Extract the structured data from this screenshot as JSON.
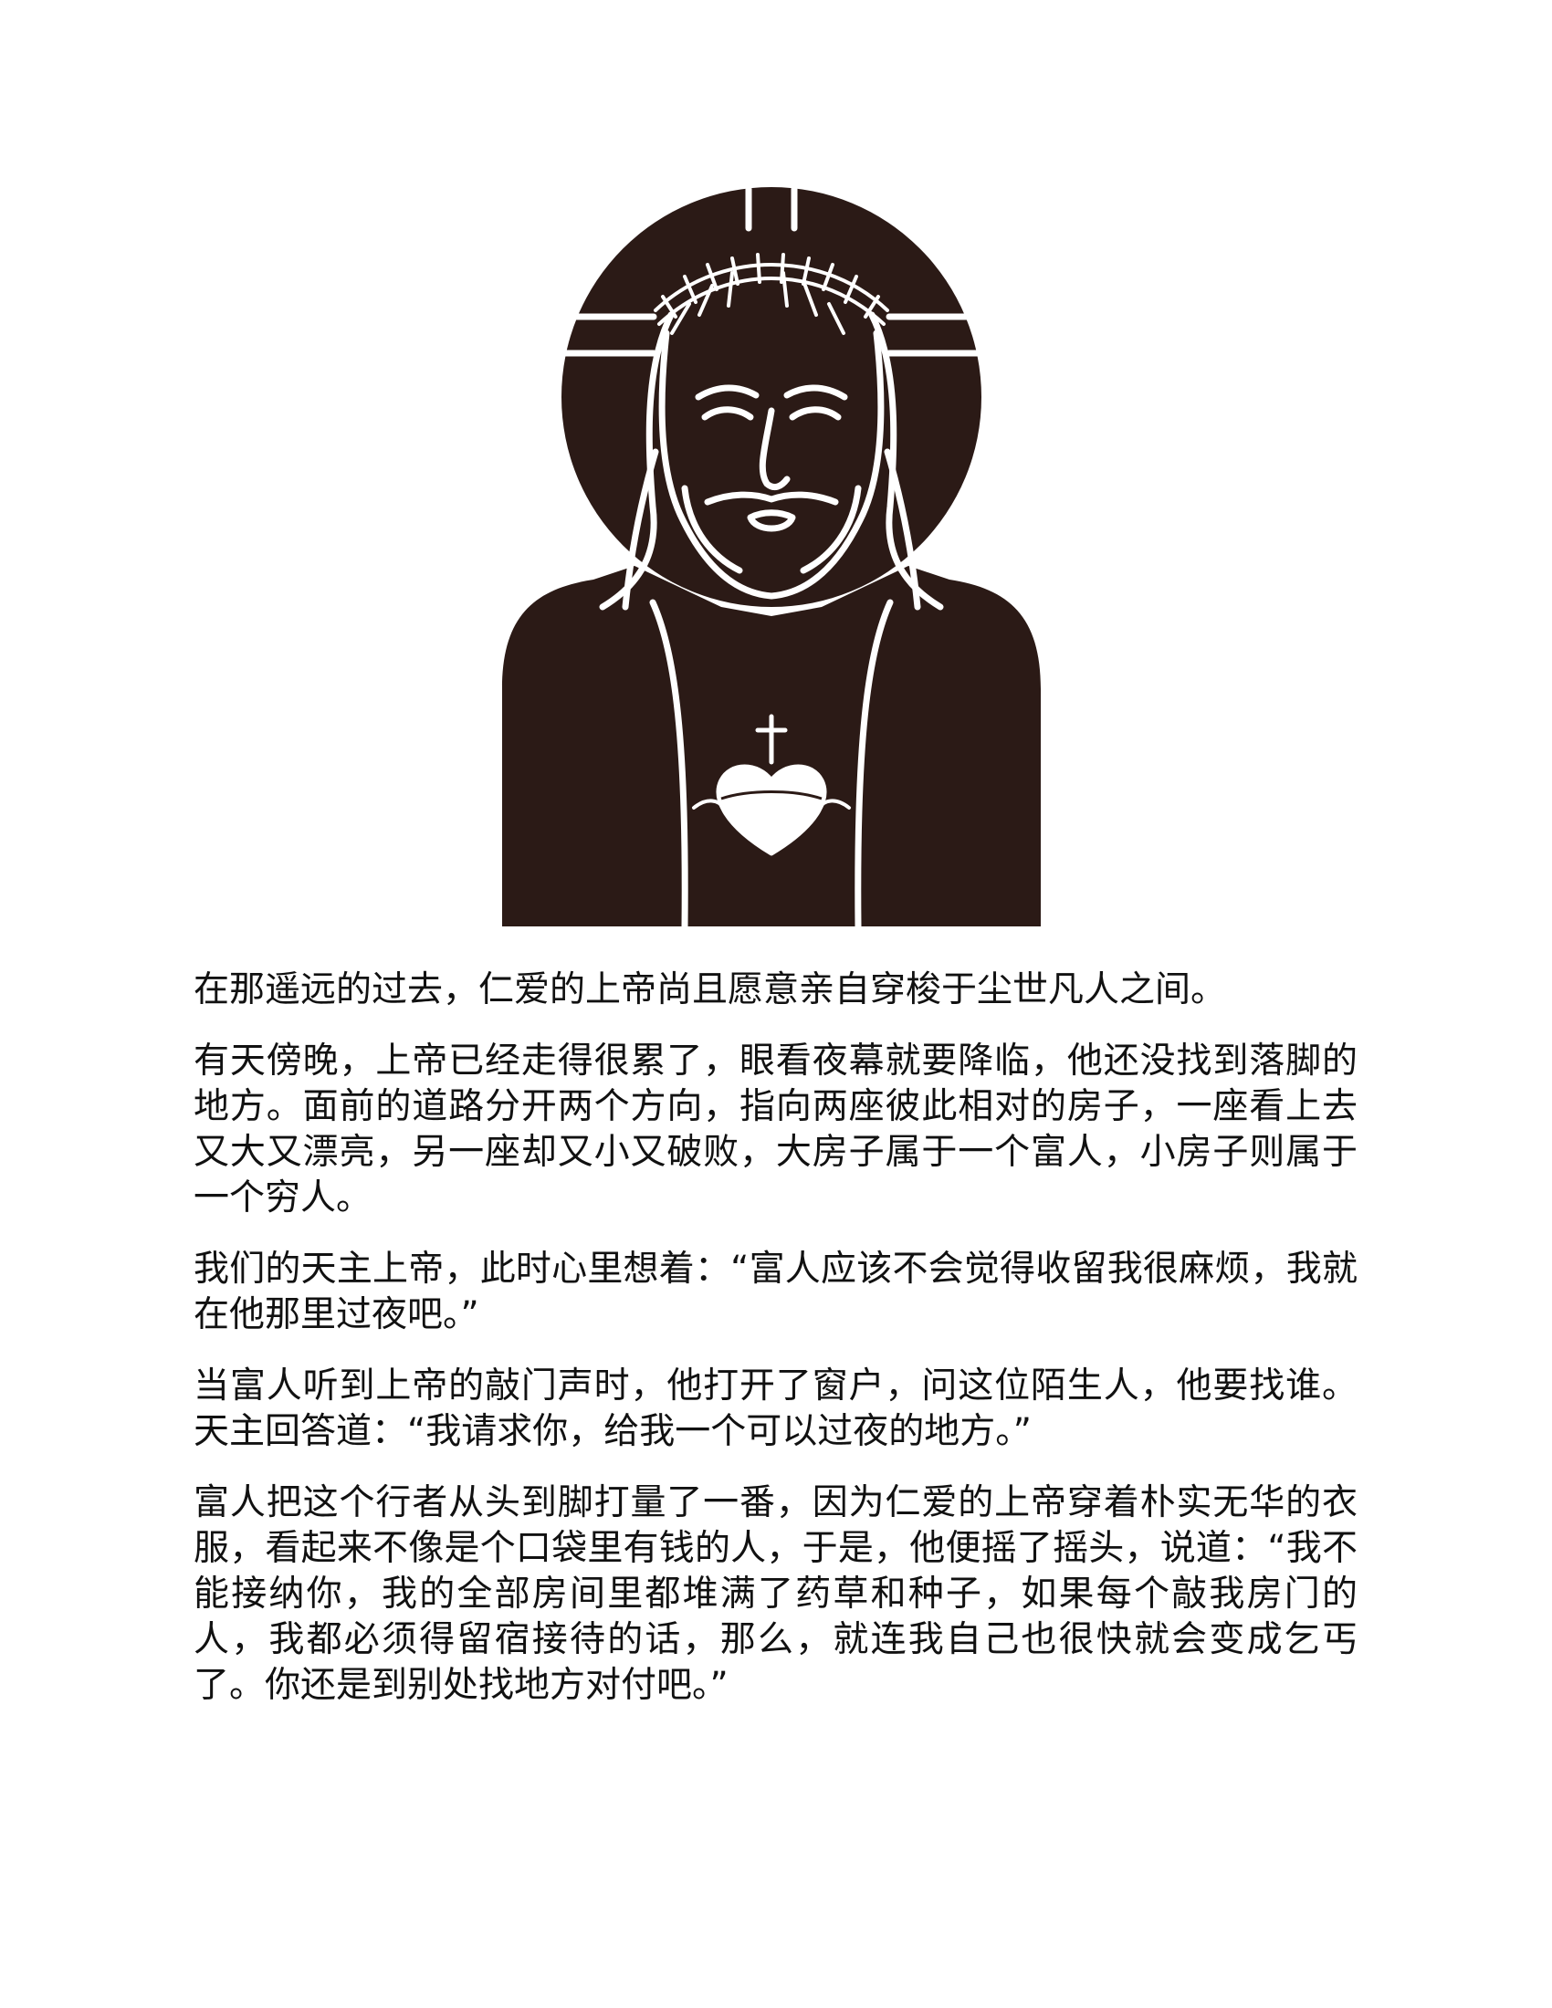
{
  "illustration": {
    "subject": "jesus-sacred-heart-icon",
    "ink_color": "#2b1a16",
    "paper_color": "#ffffff"
  },
  "story": {
    "paragraphs": [
      "在那遥远的过去，仁爱的上帝尚且愿意亲自穿梭于尘世凡人之间。",
      "有天傍晚，上帝已经走得很累了，眼看夜幕就要降临，他还没找到落脚的地方。面前的道路分开两个方向，指向两座彼此相对的房子，一座看上去又大又漂亮，另一座却又小又破败，大房子属于一个富人，小房子则属于一个穷人。",
      "我们的天主上帝，此时心里想着：“富人应该不会觉得收留我很麻烦，我就在他那里过夜吧。”",
      "当富人听到上帝的敲门声时，他打开了窗户，问这位陌生人，他要找谁。天主回答道：“我请求你，给我一个可以过夜的地方。”",
      "富人把这个行者从头到脚打量了一番，因为仁爱的上帝穿着朴实无华的衣服，看起来不像是个口袋里有钱的人，于是，他便摇了摇头，说道：“我不能接纳你，我的全部房间里都堆满了药草和种子，如果每个敲我房门的人，我都必须得留宿接待的话，那么，就连我自己也很快就会变成乞丐了。你还是到别处找地方对付吧。”"
    ]
  }
}
